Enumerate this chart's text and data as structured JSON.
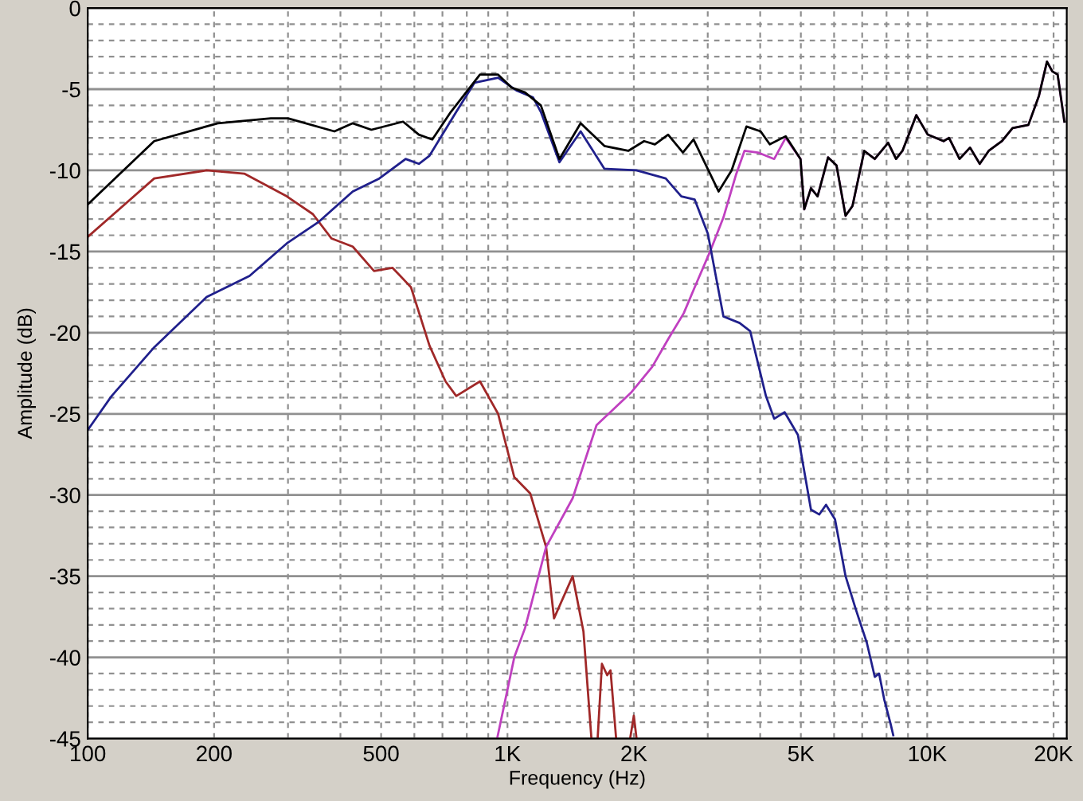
{
  "chart_data": {
    "type": "line",
    "xlabel": "Frequency (Hz)",
    "ylabel": "Amplitude (dB)",
    "log": "x",
    "grid": true,
    "marker": "none",
    "line_style": "solid",
    "xlim": [
      100,
      21500
    ],
    "ylim": [
      -45,
      0
    ],
    "xticks": [
      {
        "value": 100,
        "label": "100"
      },
      {
        "value": 200,
        "label": "200"
      },
      {
        "value": 300,
        "label": null
      },
      {
        "value": 400,
        "label": null
      },
      {
        "value": 500,
        "label": "500"
      },
      {
        "value": 600,
        "label": null
      },
      {
        "value": 700,
        "label": null
      },
      {
        "value": 800,
        "label": null
      },
      {
        "value": 900,
        "label": null
      },
      {
        "value": 1000,
        "label": "1K"
      },
      {
        "value": 2000,
        "label": "2K"
      },
      {
        "value": 3000,
        "label": null
      },
      {
        "value": 4000,
        "label": null
      },
      {
        "value": 5000,
        "label": "5K"
      },
      {
        "value": 6000,
        "label": null
      },
      {
        "value": 7000,
        "label": null
      },
      {
        "value": 8000,
        "label": null
      },
      {
        "value": 9000,
        "label": null
      },
      {
        "value": 10000,
        "label": "10K"
      },
      {
        "value": 20000,
        "label": "20K"
      }
    ],
    "yticks": [
      0,
      {
        "value": -1,
        "label": null
      },
      {
        "value": -2,
        "label": null
      },
      {
        "value": -3,
        "label": null
      },
      {
        "value": -4,
        "label": null
      },
      -5,
      {
        "value": -6,
        "label": null
      },
      {
        "value": -7,
        "label": null
      },
      {
        "value": -8,
        "label": null
      },
      {
        "value": -9,
        "label": null
      },
      -10,
      {
        "value": -11,
        "label": null
      },
      {
        "value": -12,
        "label": null
      },
      {
        "value": -13,
        "label": null
      },
      {
        "value": -14,
        "label": null
      },
      -15,
      {
        "value": -16,
        "label": null
      },
      {
        "value": -17,
        "label": null
      },
      {
        "value": -18,
        "label": null
      },
      {
        "value": -19,
        "label": null
      },
      -20,
      {
        "value": -21,
        "label": null
      },
      {
        "value": -22,
        "label": null
      },
      {
        "value": -23,
        "label": null
      },
      {
        "value": -24,
        "label": null
      },
      -25,
      {
        "value": -26,
        "label": null
      },
      {
        "value": -27,
        "label": null
      },
      {
        "value": -28,
        "label": null
      },
      {
        "value": -29,
        "label": null
      },
      -30,
      {
        "value": -31,
        "label": null
      },
      {
        "value": -32,
        "label": null
      },
      {
        "value": -33,
        "label": null
      },
      {
        "value": -34,
        "label": null
      },
      -35,
      {
        "value": -36,
        "label": null
      },
      {
        "value": -37,
        "label": null
      },
      {
        "value": -38,
        "label": null
      },
      {
        "value": -39,
        "label": null
      },
      -40,
      {
        "value": -41,
        "label": null
      },
      {
        "value": -42,
        "label": null
      },
      {
        "value": -43,
        "label": null
      },
      {
        "value": -44,
        "label": null
      },
      -45
    ],
    "series": [
      {
        "color": "#a02828",
        "x": [
          100,
          144,
          192,
          236,
          298,
          344,
          381,
          428,
          481,
          532,
          589,
          652,
          712,
          755,
          860,
          950,
          1038,
          1133,
          1236,
          1291,
          1430,
          1517,
          1585,
          1620,
          1640,
          1679,
          1728,
          1760,
          1815,
          1900,
          1960,
          2000,
          2030
        ],
        "values": [
          -14.1,
          -10.5,
          -10.0,
          -10.2,
          -11.6,
          -12.7,
          -14.2,
          -14.7,
          -16.2,
          -16.0,
          -17.2,
          -20.8,
          -23.0,
          -23.9,
          -23.0,
          -25.0,
          -28.9,
          -29.9,
          -33.2,
          -37.6,
          -35.0,
          -38.4,
          -45,
          null,
          -45,
          -40.4,
          -41.1,
          -40.8,
          -45,
          null,
          -45,
          -43.6,
          -45
        ]
      },
      {
        "color": "#c040c0",
        "x": [
          945,
          1038,
          1101,
          1236,
          1430,
          1630,
          1968,
          2213,
          2414,
          2630,
          2793,
          3050,
          3270,
          3500,
          3670,
          3950,
          4320,
          4600,
          4990,
          5094,
          5285,
          5480,
          5806,
          6080,
          6390,
          6636,
          7080,
          7500,
          8070,
          8430,
          8730,
          9420,
          10030,
          10940,
          11270,
          11940,
          12650,
          13340,
          14010,
          15070,
          15970,
          17420,
          18460,
          19290,
          19860,
          20450,
          21220
        ],
        "values": [
          -45,
          -40.0,
          -38.2,
          -33.2,
          -30.2,
          -25.7,
          -23.7,
          -22.1,
          -20.4,
          -18.8,
          -17.2,
          -14.9,
          -12.9,
          -10.3,
          -8.8,
          -8.9,
          -9.3,
          -8.0,
          -9.3,
          -12.4,
          -11.1,
          -11.6,
          -9.2,
          -9.7,
          -12.8,
          -12.2,
          -8.8,
          -9.3,
          -8.3,
          -9.3,
          -8.8,
          -6.6,
          -7.8,
          -8.2,
          -8.0,
          -9.3,
          -8.6,
          -9.6,
          -8.8,
          -8.2,
          -7.4,
          -7.2,
          -5.4,
          -3.3,
          -3.9,
          -4.1,
          -7.0
        ]
      },
      {
        "color": "#20208c",
        "x": [
          100,
          114,
          144,
          192,
          243,
          298,
          354,
          428,
          495,
          572,
          615,
          652,
          755,
          835,
          950,
          1054,
          1150,
          1201,
          1330,
          1494,
          1702,
          2028,
          2383,
          2595,
          2793,
          3002,
          3270,
          3573,
          3786,
          4128,
          4320,
          4574,
          4920,
          5285,
          5530,
          5740,
          6030,
          6390,
          6770,
          7180,
          7500,
          7680,
          7900,
          8180,
          8300
        ],
        "values": [
          -26.0,
          -23.9,
          -20.9,
          -17.8,
          -16.5,
          -14.5,
          -13.2,
          -11.3,
          -10.5,
          -9.3,
          -9.6,
          -9.1,
          -6.4,
          -4.6,
          -4.3,
          -5.1,
          -5.5,
          -6.4,
          -9.5,
          -7.6,
          -9.9,
          -10.0,
          -10.5,
          -11.6,
          -11.8,
          -13.9,
          -19.0,
          -19.4,
          -19.9,
          -23.9,
          -25.3,
          -24.9,
          -26.3,
          -30.9,
          -31.2,
          -30.6,
          -31.5,
          -35.0,
          -37.1,
          -39.1,
          -41.2,
          -41.0,
          -42.6,
          -44.1,
          -44.8
        ]
      },
      {
        "color": "#000000",
        "x": [
          100,
          144,
          204,
          273,
          300,
          387,
          428,
          474,
          564,
          615,
          662,
          733,
          860,
          950,
          1023,
          1101,
          1201,
          1330,
          1494,
          1702,
          1940,
          2116,
          2245,
          2414,
          2618,
          2775,
          3184,
          3420,
          3710,
          4010,
          4216,
          4600,
          4990,
          5094,
          5285,
          5480,
          5806,
          6080,
          6390,
          6636,
          7080,
          7500,
          8070,
          8430,
          8730,
          9420,
          10030,
          10940,
          11270,
          11940,
          12650,
          13340,
          14010,
          15070,
          15970,
          17420,
          18460,
          19290,
          19860,
          20450,
          21220
        ],
        "values": [
          -12.1,
          -8.2,
          -7.1,
          -6.8,
          -6.8,
          -7.6,
          -7.1,
          -7.5,
          -7.0,
          -7.8,
          -8.1,
          -6.4,
          -4.1,
          -4.1,
          -4.9,
          -5.2,
          -6.0,
          -9.3,
          -7.1,
          -8.5,
          -8.8,
          -8.2,
          -8.4,
          -7.8,
          -8.9,
          -8.1,
          -11.3,
          -10.0,
          -7.3,
          -7.6,
          -8.4,
          -7.9,
          -9.3,
          -12.4,
          -11.1,
          -11.6,
          -9.2,
          -9.7,
          -12.8,
          -12.2,
          -8.8,
          -9.3,
          -8.3,
          -9.3,
          -8.8,
          -6.6,
          -7.8,
          -8.2,
          -8.0,
          -9.3,
          -8.6,
          -9.6,
          -8.8,
          -8.2,
          -7.4,
          -7.2,
          -5.4,
          -3.3,
          -3.9,
          -4.1,
          -7.0
        ]
      }
    ]
  }
}
